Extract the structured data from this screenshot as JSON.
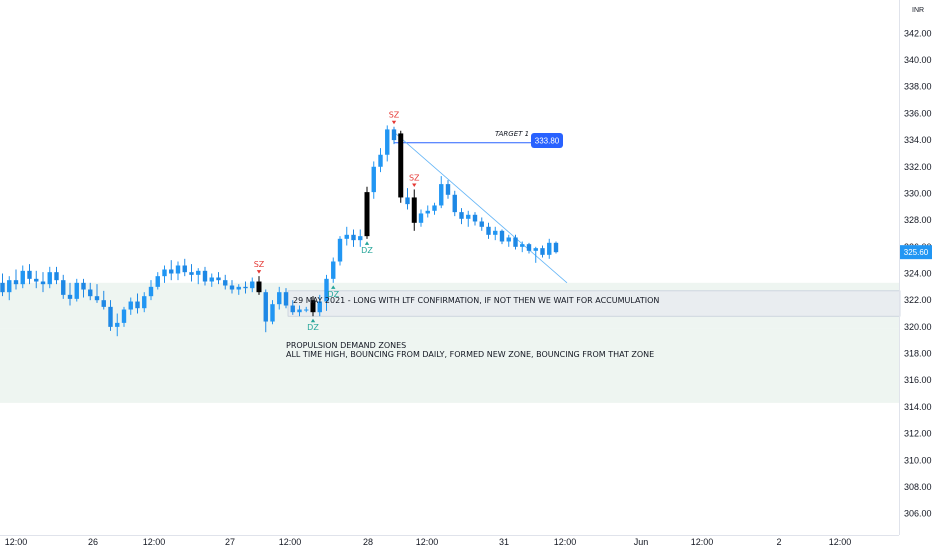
{
  "chart_data": {
    "type": "candlestick",
    "currency_label": "INR",
    "ylim": [
      304.4,
      344.2
    ],
    "y_ticks": [
      306,
      308,
      310,
      312,
      314,
      316,
      318,
      320,
      322,
      324,
      326,
      328,
      330,
      332,
      334,
      336,
      338,
      340,
      342
    ],
    "x_ticks": [
      "12:00",
      "26",
      "12:00",
      "27",
      "12:00",
      "28",
      "12:00",
      "31",
      "12:00",
      "Jun",
      "12:00",
      "2",
      "12:00"
    ],
    "colors": {
      "up": "#2196f3",
      "down": "#1e88e5",
      "signal": "#000000",
      "zone": "#e8f1ec",
      "target_line": "#2962ff",
      "trend_line": "#64b5f6",
      "sz": "#e53935",
      "dz": "#26a69a"
    },
    "candles": [
      {
        "o": 323.3,
        "h": 324.0,
        "l": 322.3,
        "c": 322.6
      },
      {
        "o": 322.6,
        "h": 323.8,
        "l": 322.0,
        "c": 323.5
      },
      {
        "o": 323.5,
        "h": 324.3,
        "l": 322.8,
        "c": 323.2
      },
      {
        "o": 323.2,
        "h": 324.6,
        "l": 322.9,
        "c": 324.2
      },
      {
        "o": 324.2,
        "h": 324.7,
        "l": 323.2,
        "c": 323.6
      },
      {
        "o": 323.6,
        "h": 324.2,
        "l": 322.9,
        "c": 323.4
      },
      {
        "o": 323.4,
        "h": 324.1,
        "l": 322.6,
        "c": 323.2
      },
      {
        "o": 323.2,
        "h": 324.5,
        "l": 322.9,
        "c": 324.1
      },
      {
        "o": 324.1,
        "h": 324.5,
        "l": 323.2,
        "c": 323.5
      },
      {
        "o": 323.5,
        "h": 323.9,
        "l": 322.1,
        "c": 322.4
      },
      {
        "o": 322.4,
        "h": 323.3,
        "l": 321.6,
        "c": 322.1
      },
      {
        "o": 322.1,
        "h": 323.6,
        "l": 321.9,
        "c": 323.3
      },
      {
        "o": 323.3,
        "h": 323.6,
        "l": 322.2,
        "c": 322.8
      },
      {
        "o": 322.8,
        "h": 323.3,
        "l": 322.0,
        "c": 322.3
      },
      {
        "o": 322.3,
        "h": 323.2,
        "l": 321.8,
        "c": 322.0
      },
      {
        "o": 322.0,
        "h": 322.7,
        "l": 321.3,
        "c": 321.5
      },
      {
        "o": 321.5,
        "h": 322.0,
        "l": 319.7,
        "c": 320.0
      },
      {
        "o": 320.0,
        "h": 321.0,
        "l": 319.3,
        "c": 320.3
      },
      {
        "o": 320.3,
        "h": 321.5,
        "l": 320.0,
        "c": 321.3
      },
      {
        "o": 321.3,
        "h": 322.2,
        "l": 320.9,
        "c": 321.9
      },
      {
        "o": 321.9,
        "h": 322.5,
        "l": 321.0,
        "c": 321.4
      },
      {
        "o": 321.4,
        "h": 322.6,
        "l": 321.1,
        "c": 322.3
      },
      {
        "o": 322.3,
        "h": 323.5,
        "l": 322.0,
        "c": 323.0
      },
      {
        "o": 323.0,
        "h": 324.1,
        "l": 322.8,
        "c": 323.8
      },
      {
        "o": 323.8,
        "h": 324.6,
        "l": 323.3,
        "c": 324.3
      },
      {
        "o": 324.3,
        "h": 325.0,
        "l": 323.5,
        "c": 324.0
      },
      {
        "o": 324.0,
        "h": 324.9,
        "l": 323.5,
        "c": 324.6
      },
      {
        "o": 324.6,
        "h": 325.1,
        "l": 323.8,
        "c": 324.1
      },
      {
        "o": 324.1,
        "h": 324.7,
        "l": 323.4,
        "c": 323.9
      },
      {
        "o": 323.9,
        "h": 324.4,
        "l": 323.2,
        "c": 324.2
      },
      {
        "o": 324.2,
        "h": 324.5,
        "l": 323.1,
        "c": 323.4
      },
      {
        "o": 323.4,
        "h": 324.0,
        "l": 323.0,
        "c": 323.7
      },
      {
        "o": 323.7,
        "h": 324.1,
        "l": 323.2,
        "c": 323.5
      },
      {
        "o": 323.5,
        "h": 323.9,
        "l": 322.8,
        "c": 323.1
      },
      {
        "o": 323.1,
        "h": 323.5,
        "l": 322.5,
        "c": 322.8
      },
      {
        "o": 322.8,
        "h": 323.2,
        "l": 322.4,
        "c": 323.0
      },
      {
        "o": 323.0,
        "h": 323.4,
        "l": 322.5,
        "c": 322.9
      },
      {
        "o": 322.9,
        "h": 323.7,
        "l": 322.6,
        "c": 323.4
      },
      {
        "o": 323.4,
        "h": 323.8,
        "l": 322.4,
        "c": 322.6,
        "signal": true
      },
      {
        "o": 322.6,
        "h": 322.8,
        "l": 319.6,
        "c": 320.4
      },
      {
        "o": 320.4,
        "h": 322.0,
        "l": 320.2,
        "c": 321.7
      },
      {
        "o": 321.7,
        "h": 323.0,
        "l": 321.3,
        "c": 322.6
      },
      {
        "o": 322.6,
        "h": 322.9,
        "l": 321.4,
        "c": 321.6
      },
      {
        "o": 321.6,
        "h": 322.0,
        "l": 320.9,
        "c": 321.1
      },
      {
        "o": 321.1,
        "h": 321.6,
        "l": 320.8,
        "c": 321.3
      },
      {
        "o": 321.3,
        "h": 321.5,
        "l": 321.1,
        "c": 321.3
      },
      {
        "o": 322.0,
        "h": 322.3,
        "l": 320.8,
        "c": 321.1,
        "signal": true
      },
      {
        "o": 321.1,
        "h": 322.4,
        "l": 320.8,
        "c": 321.9
      },
      {
        "o": 321.9,
        "h": 323.9,
        "l": 321.2,
        "c": 323.6
      },
      {
        "o": 323.6,
        "h": 325.2,
        "l": 323.3,
        "c": 324.9
      },
      {
        "o": 324.9,
        "h": 326.8,
        "l": 324.6,
        "c": 326.6
      },
      {
        "o": 326.6,
        "h": 327.5,
        "l": 326.1,
        "c": 326.9
      },
      {
        "o": 326.9,
        "h": 327.3,
        "l": 326.0,
        "c": 326.5
      },
      {
        "o": 326.5,
        "h": 327.3,
        "l": 326.0,
        "c": 326.8
      },
      {
        "o": 326.8,
        "h": 330.5,
        "l": 326.6,
        "c": 330.1,
        "signal": true
      },
      {
        "o": 330.1,
        "h": 332.4,
        "l": 329.6,
        "c": 332.0
      },
      {
        "o": 332.0,
        "h": 333.4,
        "l": 331.6,
        "c": 332.9
      },
      {
        "o": 332.9,
        "h": 335.1,
        "l": 332.4,
        "c": 334.8
      },
      {
        "o": 334.8,
        "h": 335.0,
        "l": 333.7,
        "c": 334.0
      },
      {
        "o": 334.5,
        "h": 334.7,
        "l": 329.3,
        "c": 329.7,
        "signal": true
      },
      {
        "o": 329.7,
        "h": 330.4,
        "l": 328.8,
        "c": 329.2
      },
      {
        "o": 329.7,
        "h": 330.3,
        "l": 327.2,
        "c": 327.8,
        "signal": true
      },
      {
        "o": 327.8,
        "h": 328.8,
        "l": 327.5,
        "c": 328.5
      },
      {
        "o": 328.5,
        "h": 329.1,
        "l": 328.2,
        "c": 328.7
      },
      {
        "o": 328.7,
        "h": 329.3,
        "l": 328.4,
        "c": 329.1
      },
      {
        "o": 329.1,
        "h": 331.3,
        "l": 328.9,
        "c": 330.7
      },
      {
        "o": 330.7,
        "h": 331.0,
        "l": 329.6,
        "c": 329.9
      },
      {
        "o": 329.9,
        "h": 330.2,
        "l": 328.3,
        "c": 328.6
      },
      {
        "o": 328.6,
        "h": 328.9,
        "l": 327.7,
        "c": 328.1
      },
      {
        "o": 328.1,
        "h": 328.7,
        "l": 327.5,
        "c": 328.4
      },
      {
        "o": 328.4,
        "h": 328.6,
        "l": 327.6,
        "c": 327.9
      },
      {
        "o": 327.9,
        "h": 328.2,
        "l": 327.2,
        "c": 327.5
      },
      {
        "o": 327.5,
        "h": 327.8,
        "l": 326.6,
        "c": 326.9
      },
      {
        "o": 326.9,
        "h": 327.5,
        "l": 326.5,
        "c": 327.2
      },
      {
        "o": 327.2,
        "h": 327.3,
        "l": 326.2,
        "c": 326.4
      },
      {
        "o": 326.4,
        "h": 326.9,
        "l": 326.0,
        "c": 326.7
      },
      {
        "o": 326.7,
        "h": 326.9,
        "l": 325.8,
        "c": 326.0
      },
      {
        "o": 326.0,
        "h": 326.4,
        "l": 325.6,
        "c": 326.2
      },
      {
        "o": 326.2,
        "h": 326.3,
        "l": 325.5,
        "c": 325.7
      },
      {
        "o": 325.7,
        "h": 326.0,
        "l": 324.8,
        "c": 325.9
      },
      {
        "o": 325.9,
        "h": 326.1,
        "l": 325.2,
        "c": 325.4
      },
      {
        "o": 325.4,
        "h": 326.6,
        "l": 325.1,
        "c": 326.3
      },
      {
        "o": 326.3,
        "h": 326.4,
        "l": 325.5,
        "c": 325.6
      }
    ],
    "zones": [
      {
        "from": 319.9,
        "to": 323.3
      },
      {
        "from": 314.3,
        "to": 319.9
      }
    ],
    "accumulation_box": {
      "from": 320.8,
      "to": 322.7
    },
    "target": {
      "label": "TARGET 1",
      "value": "333.80",
      "level": 333.8
    },
    "current_price": {
      "value": "325.60",
      "level": 325.6
    },
    "annotations": {
      "accumulation_note": "29 MAY 2021 - LONG WITH LTF CONFIRMATION, IF NOT THEN WE WAIT FOR ACCUMULATION",
      "zone_title": "PROPULSION DEMAND ZONES",
      "zone_note": "ALL TIME HIGH, BOUNCING FROM DAILY, FORMED NEW ZONE, BOUNCING FROM THAT ZONE"
    },
    "markers": [
      {
        "label": "SZ",
        "candle": 38,
        "dir": "down"
      },
      {
        "label": "DZ",
        "candle": 46,
        "dir": "up"
      },
      {
        "label": "DZ",
        "candle": 49,
        "dir": "up"
      },
      {
        "label": "DZ",
        "candle": 54,
        "dir": "up"
      },
      {
        "label": "SZ",
        "candle": 58,
        "dir": "down"
      },
      {
        "label": "SZ",
        "candle": 61,
        "dir": "down"
      }
    ]
  }
}
